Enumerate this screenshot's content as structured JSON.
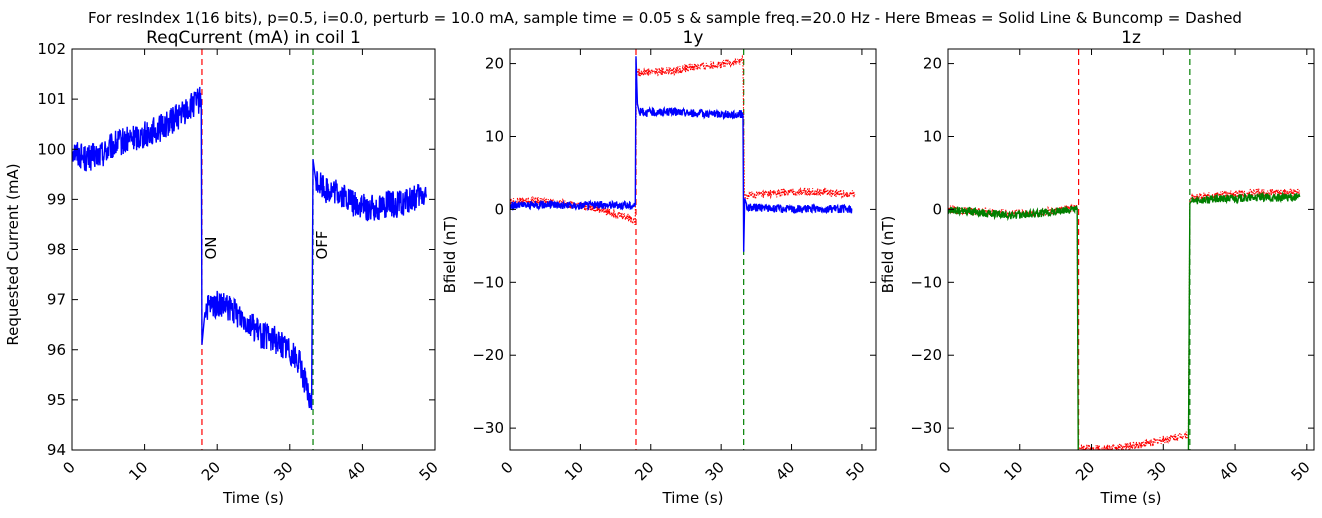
{
  "figure": {
    "suptitle": "For resIndex 1(16 bits), p=0.5, i=0.0, perturb = 10.0 mA, sample time = 0.05 s & sample freq.=20.0 Hz - Here Bmeas = Solid Line & Buncomp = Dashed"
  },
  "colors": {
    "blue": "#0000ff",
    "red": "#ff0000",
    "green": "#007f00",
    "black": "#000000"
  },
  "chart_data": [
    {
      "type": "line",
      "title": "ReqCurrent (mA) in coil 1",
      "xlabel": "Time (s)",
      "ylabel": "Requested Current (mA)",
      "xlim": [
        0,
        50
      ],
      "ylim": [
        94,
        102
      ],
      "xticks": [
        0,
        10,
        20,
        30,
        40,
        50
      ],
      "yticks": [
        94,
        95,
        96,
        97,
        98,
        99,
        100,
        101,
        102
      ],
      "xtick_labels": [
        "0",
        "10",
        "20",
        "30",
        "40",
        "50"
      ],
      "ytick_labels": [
        "94",
        "95",
        "96",
        "97",
        "98",
        "99",
        "100",
        "101",
        "102"
      ],
      "vlines": [
        {
          "x": 17.9,
          "color": "red",
          "style": "dashed"
        },
        {
          "x": 33.2,
          "color": "green",
          "style": "dashed"
        }
      ],
      "annotations": [
        {
          "text": "ON",
          "x": 17.9,
          "y": 97.8
        },
        {
          "text": "OFF",
          "x": 33.2,
          "y": 97.8
        }
      ],
      "series": [
        {
          "color": "blue",
          "style": "solid",
          "x": [
            0,
            2,
            4,
            6,
            8,
            10,
            12,
            14,
            16,
            17.8,
            17.9,
            18.3,
            20,
            22,
            24,
            26,
            28,
            30,
            31.5,
            33.0,
            33.2,
            33.6,
            35,
            37,
            39,
            41,
            43,
            45,
            47,
            48.8
          ],
          "y": [
            100.0,
            99.8,
            99.9,
            100.1,
            100.2,
            100.3,
            100.4,
            100.6,
            100.8,
            101.0,
            96.1,
            96.8,
            96.9,
            96.8,
            96.6,
            96.3,
            96.2,
            96.0,
            95.7,
            94.8,
            99.8,
            99.4,
            99.2,
            99.1,
            98.9,
            98.8,
            98.9,
            98.9,
            99.0,
            99.1
          ]
        }
      ]
    },
    {
      "type": "line",
      "title": "1y",
      "xlabel": "Time (s)",
      "ylabel": "Bfield (nT)",
      "xlim": [
        0,
        52
      ],
      "ylim": [
        -33,
        22
      ],
      "xticks": [
        0,
        10,
        20,
        30,
        40,
        50
      ],
      "yticks": [
        -30,
        -20,
        -10,
        0,
        10,
        20
      ],
      "xtick_labels": [
        "0",
        "10",
        "20",
        "30",
        "40",
        "50"
      ],
      "ytick_labels": [
        "−30",
        "−20",
        "−10",
        "0",
        "10",
        "20"
      ],
      "vlines": [
        {
          "x": 17.9,
          "color": "red",
          "style": "dashed"
        },
        {
          "x": 33.2,
          "color": "green",
          "style": "dashed"
        }
      ],
      "annotations": [],
      "series": [
        {
          "color": "red",
          "style": "dotted",
          "x": [
            0,
            3,
            6,
            9,
            12,
            15,
            17.0,
            17.8,
            17.95,
            18.2,
            20,
            23,
            26,
            29,
            32,
            33.1,
            33.3,
            35,
            38,
            41,
            44,
            47,
            49
          ],
          "y": [
            1.0,
            1.2,
            1.0,
            0.6,
            0.2,
            -0.6,
            -1.2,
            -1.6,
            18.0,
            18.8,
            18.9,
            19.0,
            19.5,
            19.8,
            20.2,
            20.5,
            1.8,
            2.0,
            2.2,
            2.4,
            2.4,
            2.2,
            2.1
          ]
        },
        {
          "color": "blue",
          "style": "solid",
          "x": [
            0,
            3,
            6,
            9,
            12,
            15,
            17.8,
            17.9,
            18.1,
            18.4,
            20,
            23,
            26,
            29,
            32,
            33.1,
            33.2,
            33.35,
            33.6,
            36,
            40,
            44,
            48.6
          ],
          "y": [
            0.5,
            0.6,
            0.7,
            0.5,
            0.6,
            0.6,
            0.5,
            21.0,
            14.5,
            13.4,
            13.3,
            13.4,
            13.2,
            13.1,
            13.0,
            13.1,
            -5.8,
            1.5,
            0.3,
            0.2,
            0.0,
            0.1,
            0.0
          ]
        }
      ]
    },
    {
      "type": "line",
      "title": "1z",
      "xlabel": "Time (s)",
      "ylabel": "Bfield (nT)",
      "xlim": [
        0,
        51
      ],
      "ylim": [
        -33,
        22
      ],
      "xticks": [
        0,
        10,
        20,
        30,
        40,
        50
      ],
      "yticks": [
        -30,
        -20,
        -10,
        0,
        10,
        20
      ],
      "xtick_labels": [
        "0",
        "10",
        "20",
        "30",
        "40",
        "50"
      ],
      "ytick_labels": [
        "−30",
        "−20",
        "−10",
        "0",
        "10",
        "20"
      ],
      "vlines": [
        {
          "x": 18.2,
          "color": "red",
          "style": "dashed"
        },
        {
          "x": 33.7,
          "color": "green",
          "style": "dashed"
        }
      ],
      "annotations": [],
      "series": [
        {
          "color": "red",
          "style": "dotted",
          "x": [
            0,
            3,
            6,
            9,
            12,
            15,
            18.0,
            18.15,
            18.4,
            20,
            23,
            26,
            29,
            32,
            33.5,
            33.7,
            34,
            37,
            40,
            43,
            46,
            49
          ],
          "y": [
            0.0,
            -0.2,
            -0.4,
            -0.6,
            -0.5,
            -0.2,
            0.2,
            -32.5,
            -32.7,
            -32.8,
            -32.8,
            -32.4,
            -31.8,
            -31.2,
            -30.8,
            1.0,
            1.6,
            1.9,
            2.1,
            2.3,
            2.3,
            2.2
          ]
        },
        {
          "color": "green",
          "style": "solid",
          "x": [
            0,
            3,
            6,
            9,
            12,
            15,
            18.0,
            18.15,
            18.3,
            20,
            25,
            30,
            33.5,
            33.7,
            34,
            37,
            40,
            43,
            46,
            49
          ],
          "y": [
            -0.1,
            -0.3,
            -0.6,
            -0.8,
            -0.6,
            -0.3,
            0.1,
            -33.5,
            -34,
            -34,
            -34,
            -34,
            -34,
            0.8,
            1.2,
            1.4,
            1.5,
            1.6,
            1.6,
            1.7
          ]
        }
      ]
    }
  ]
}
